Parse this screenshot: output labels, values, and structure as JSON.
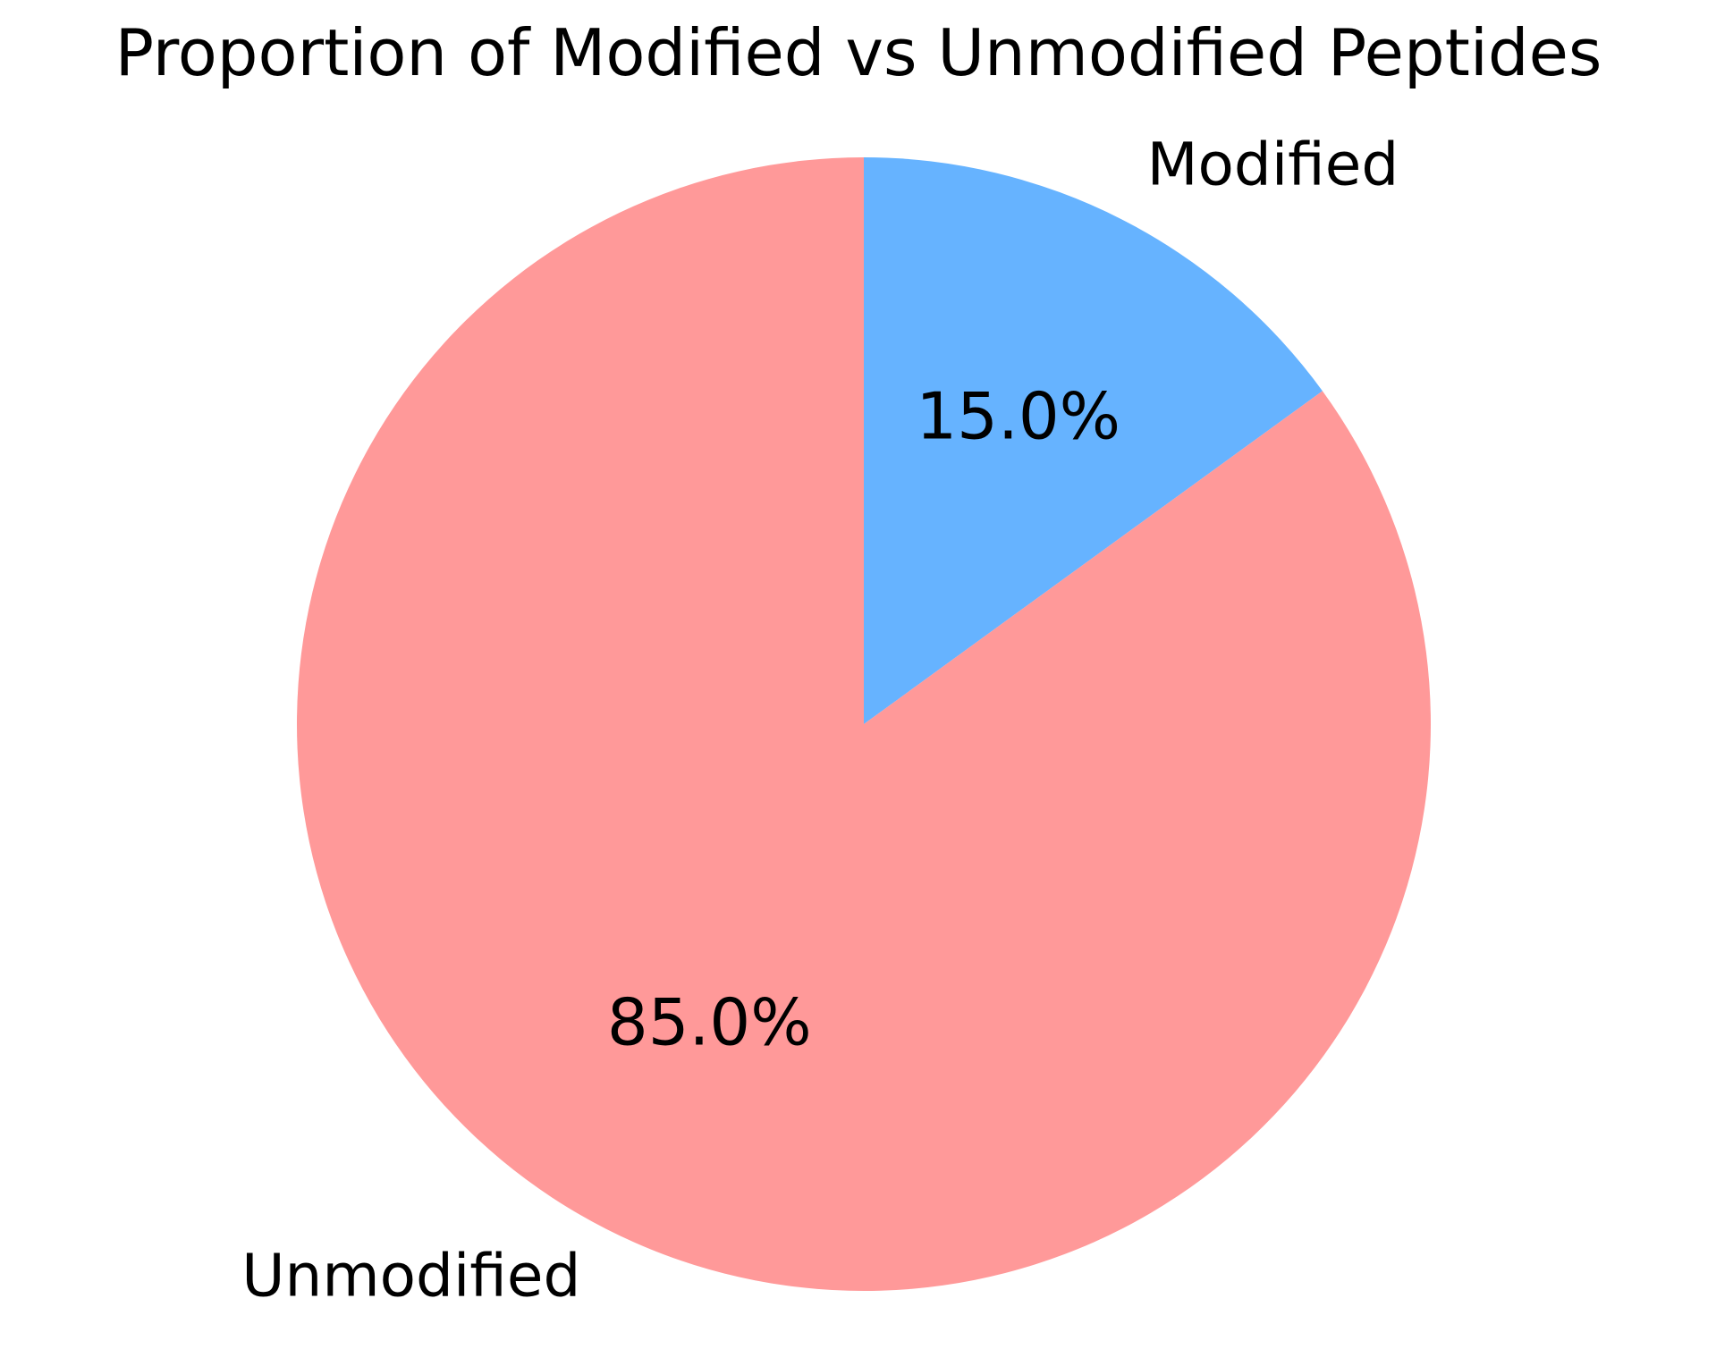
{
  "chart_data": {
    "type": "pie",
    "title": "Proportion of Modified vs Unmodified Peptides",
    "categories": [
      "Modified",
      "Unmodified"
    ],
    "values": [
      15.0,
      85.0
    ],
    "value_labels": [
      "15.0%",
      "85.0%"
    ],
    "colors": [
      "#66b3ff",
      "#ff9999"
    ],
    "start_angle_deg": 90,
    "direction": "clockwise",
    "legend": "none"
  }
}
